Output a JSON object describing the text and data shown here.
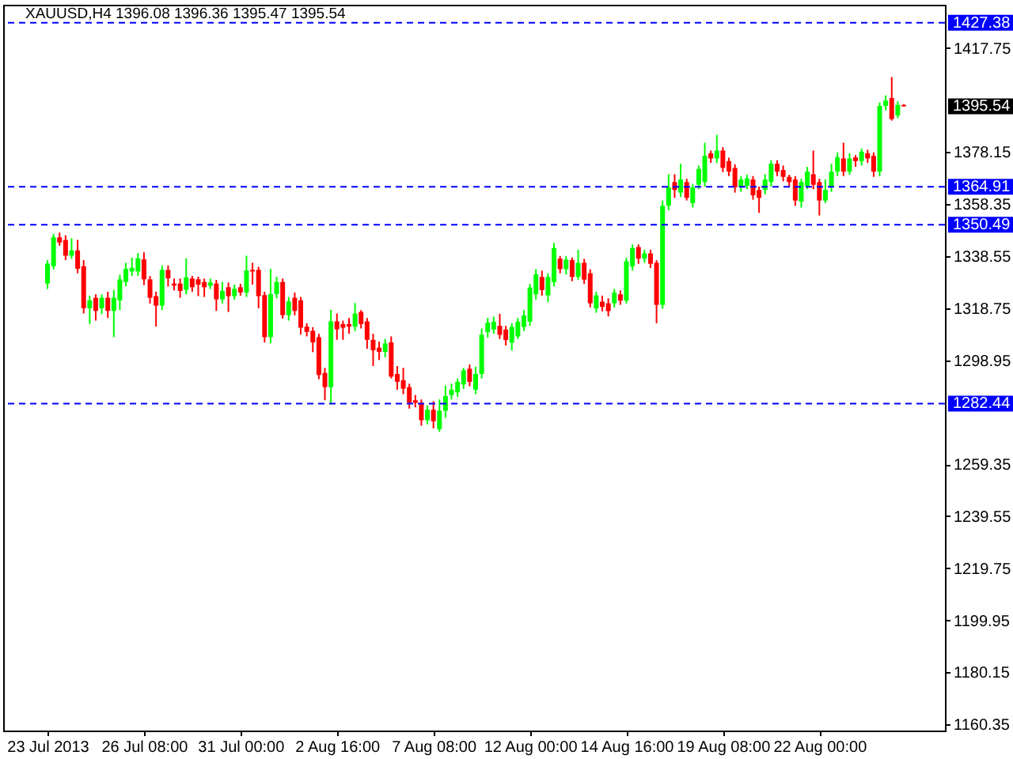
{
  "chart_data": {
    "type": "candlestick",
    "title": "XAUUSD,H4 1396.08 1396.36 1395.47 1395.54",
    "categories": [
      "23 Jul 2013",
      null,
      null,
      null,
      null,
      null,
      null,
      null,
      null,
      null,
      null,
      null,
      null,
      null,
      null,
      null,
      "26 Jul 08:00",
      null,
      null,
      null,
      null,
      null,
      null,
      null,
      null,
      null,
      null,
      null,
      null,
      null,
      null,
      null,
      "31 Jul 00:00",
      null,
      null,
      null,
      null,
      null,
      null,
      null,
      null,
      null,
      null,
      null,
      null,
      null,
      null,
      null,
      "2 Aug 16:00",
      null,
      null,
      null,
      null,
      null,
      null,
      null,
      null,
      null,
      null,
      null,
      null,
      null,
      null,
      null,
      "7 Aug 08:00",
      null,
      null,
      null,
      null,
      null,
      null,
      null,
      null,
      null,
      null,
      null,
      null,
      null,
      null,
      null,
      "12 Aug 00:00",
      null,
      null,
      null,
      null,
      null,
      null,
      null,
      null,
      null,
      null,
      null,
      null,
      null,
      null,
      null,
      "14 Aug 16:00",
      null,
      null,
      null,
      null,
      null,
      null,
      null,
      null,
      null,
      null,
      null,
      null,
      null,
      null,
      null,
      "19 Aug 08:00",
      null,
      null,
      null,
      null,
      null,
      null,
      null,
      null,
      null,
      null,
      null,
      null,
      null,
      null,
      null,
      "22 Aug 00:00",
      null,
      null,
      null,
      null,
      null,
      null,
      null,
      null,
      null,
      null,
      null,
      null,
      null,
      null
    ],
    "ohlc": [
      [
        1328.1,
        1337,
        1326,
        1335.7
      ],
      [
        1334.7,
        1347.1,
        1333.5,
        1345.7
      ],
      [
        1345.7,
        1347.5,
        1342.5,
        1343.7
      ],
      [
        1344.7,
        1346.5,
        1337,
        1338.7
      ],
      [
        1338.7,
        1345.3,
        1337.5,
        1340.7
      ],
      [
        1340.7,
        1344.7,
        1332,
        1333.7
      ],
      [
        1334.7,
        1337,
        1316.7,
        1318.7
      ],
      [
        1318.7,
        1323.5,
        1312.7,
        1321.7
      ],
      [
        1322.7,
        1324,
        1314,
        1317.7
      ],
      [
        1318.7,
        1324,
        1316.5,
        1322.7
      ],
      [
        1322.7,
        1325,
        1315,
        1317.7
      ],
      [
        1317.7,
        1325.7,
        1307.7,
        1322.7
      ],
      [
        1321.7,
        1331.5,
        1318,
        1329.7
      ],
      [
        1328.7,
        1336,
        1327,
        1333.7
      ],
      [
        1332.7,
        1338,
        1331,
        1334.1
      ],
      [
        1332.7,
        1339.7,
        1331,
        1337.7
      ],
      [
        1337.3,
        1340,
        1327.5,
        1329.7
      ],
      [
        1329.7,
        1331,
        1320.5,
        1322.7
      ],
      [
        1323.3,
        1325,
        1311.7,
        1319.7
      ],
      [
        1319.7,
        1335,
        1318,
        1333.3
      ],
      [
        1333.3,
        1335,
        1327,
        1330.1
      ],
      [
        1328.1,
        1330,
        1325.5,
        1327.3
      ],
      [
        1328.1,
        1330,
        1322.7,
        1325.3
      ],
      [
        1325.7,
        1337.7,
        1324,
        1330.5
      ],
      [
        1330,
        1331,
        1325,
        1326.7
      ],
      [
        1329.7,
        1330.7,
        1323.3,
        1327.7
      ],
      [
        1328.7,
        1330,
        1323,
        1326.7
      ],
      [
        1327.3,
        1330,
        1326,
        1328.5
      ],
      [
        1328.1,
        1329.5,
        1317.7,
        1322.1
      ],
      [
        1322.1,
        1328.7,
        1320.5,
        1325.3
      ],
      [
        1326.7,
        1328.5,
        1317.3,
        1323.3
      ],
      [
        1323.3,
        1327.7,
        1322,
        1326.1
      ],
      [
        1326.7,
        1328,
        1323.5,
        1324.7
      ],
      [
        1324.7,
        1338.7,
        1323,
        1333.1
      ],
      [
        1333.3,
        1336,
        1327.7,
        1332.7
      ],
      [
        1333.3,
        1334.5,
        1318.7,
        1323.3
      ],
      [
        1323.7,
        1325,
        1305.7,
        1307.7
      ],
      [
        1307.7,
        1333.7,
        1305.3,
        1324.1
      ],
      [
        1324.1,
        1330.7,
        1322.5,
        1328.7
      ],
      [
        1328.7,
        1330,
        1314.7,
        1316.1
      ],
      [
        1316.1,
        1323,
        1314,
        1321.3
      ],
      [
        1322.7,
        1324.7,
        1316,
        1317.7
      ],
      [
        1321.7,
        1323,
        1308.7,
        1311.3
      ],
      [
        1311.7,
        1313,
        1308,
        1309.7
      ],
      [
        1310.1,
        1311.5,
        1302,
        1305.7
      ],
      [
        1307.7,
        1309,
        1291.7,
        1293.3
      ],
      [
        1294.1,
        1296,
        1283.7,
        1288.7
      ],
      [
        1288.7,
        1318.1,
        1282.1,
        1313.7
      ],
      [
        1313.7,
        1316.7,
        1306.7,
        1310.7
      ],
      [
        1312.7,
        1314,
        1306.7,
        1311.3
      ],
      [
        1312.7,
        1315,
        1309,
        1311.7
      ],
      [
        1311.7,
        1320.7,
        1310,
        1316.7
      ],
      [
        1317.3,
        1318,
        1311,
        1312.7
      ],
      [
        1313.7,
        1315,
        1303.3,
        1306.7
      ],
      [
        1306.7,
        1309,
        1296.7,
        1302.7
      ],
      [
        1303.7,
        1306,
        1299,
        1302.1
      ],
      [
        1302.1,
        1307,
        1300,
        1305.3
      ],
      [
        1305.7,
        1308,
        1292,
        1292.7
      ],
      [
        1293.7,
        1296.7,
        1287.7,
        1290.7
      ],
      [
        1291.3,
        1296,
        1286,
        1288.1
      ],
      [
        1288.7,
        1290,
        1280.5,
        1282.7
      ],
      [
        1283.7,
        1285.7,
        1281,
        1282.7
      ],
      [
        1282.7,
        1284,
        1274,
        1276.1
      ],
      [
        1276.1,
        1281.7,
        1274.5,
        1280.1
      ],
      [
        1280.1,
        1283.3,
        1273,
        1275.7
      ],
      [
        1272.7,
        1284,
        1271.7,
        1279.7
      ],
      [
        1279.7,
        1289.3,
        1277,
        1285.3
      ],
      [
        1285.7,
        1290,
        1284,
        1287.7
      ],
      [
        1286.7,
        1292,
        1285,
        1290.7
      ],
      [
        1289.7,
        1296,
        1288,
        1295.1
      ],
      [
        1295.7,
        1297.3,
        1289,
        1290.7
      ],
      [
        1287.7,
        1296.5,
        1286,
        1293.7
      ],
      [
        1293.7,
        1311,
        1292,
        1308.6
      ],
      [
        1309.6,
        1315,
        1307.5,
        1313.2
      ],
      [
        1310.6,
        1315.5,
        1309,
        1313.6
      ],
      [
        1312,
        1316.6,
        1307,
        1308.6
      ],
      [
        1310.6,
        1312,
        1304.5,
        1306.6
      ],
      [
        1305.6,
        1313,
        1302.6,
        1311.6
      ],
      [
        1308,
        1315,
        1307,
        1313.6
      ],
      [
        1311.6,
        1318,
        1310,
        1316
      ],
      [
        1313.6,
        1328,
        1312,
        1326.6
      ],
      [
        1324,
        1333.6,
        1322,
        1331.6
      ],
      [
        1330.6,
        1333,
        1323.5,
        1325.6
      ],
      [
        1323.6,
        1332,
        1321,
        1330.6
      ],
      [
        1328.6,
        1343.6,
        1327,
        1341.6
      ],
      [
        1337.6,
        1338.6,
        1332,
        1333.6
      ],
      [
        1333.6,
        1338.6,
        1331.5,
        1337.2
      ],
      [
        1337,
        1338,
        1329,
        1330.6
      ],
      [
        1330.6,
        1341,
        1329.5,
        1336
      ],
      [
        1336,
        1337.5,
        1328,
        1329.6
      ],
      [
        1332,
        1333.5,
        1319,
        1320.6
      ],
      [
        1318.6,
        1325,
        1317,
        1323.6
      ],
      [
        1321.2,
        1323.5,
        1317.5,
        1319.2
      ],
      [
        1320.6,
        1322.5,
        1315.6,
        1317.6
      ],
      [
        1320.6,
        1326,
        1319,
        1324.6
      ],
      [
        1324,
        1325.5,
        1320,
        1321.6
      ],
      [
        1321.6,
        1338,
        1320.5,
        1336.6
      ],
      [
        1334.6,
        1343,
        1333,
        1341.6
      ],
      [
        1342,
        1343,
        1335.6,
        1337.6
      ],
      [
        1337.6,
        1341,
        1336,
        1339.6
      ],
      [
        1339.6,
        1341,
        1334,
        1335.6
      ],
      [
        1336,
        1337,
        1313,
        1320
      ],
      [
        1320,
        1359.7,
        1318.5,
        1357.7
      ],
      [
        1357.7,
        1369.7,
        1356,
        1364.7
      ],
      [
        1366.7,
        1369.7,
        1360.7,
        1363.7
      ],
      [
        1362.7,
        1373.7,
        1361,
        1367.7
      ],
      [
        1366.7,
        1368,
        1359.7,
        1360.7
      ],
      [
        1358.7,
        1366,
        1357,
        1364.7
      ],
      [
        1365.7,
        1373,
        1364,
        1371.7
      ],
      [
        1366.7,
        1381.7,
        1365,
        1376.7
      ],
      [
        1377.7,
        1378.7,
        1374,
        1375.7
      ],
      [
        1375.7,
        1384.7,
        1374,
        1378.7
      ],
      [
        1378.7,
        1380,
        1370.5,
        1372.1
      ],
      [
        1374.7,
        1376,
        1369,
        1370.7
      ],
      [
        1372.1,
        1373.5,
        1362.7,
        1364.7
      ],
      [
        1364.7,
        1369,
        1363,
        1367.7
      ],
      [
        1365.3,
        1369.5,
        1364,
        1368.1
      ],
      [
        1367.7,
        1369,
        1360,
        1361.7
      ],
      [
        1363.7,
        1365,
        1355,
        1360.7
      ],
      [
        1363.7,
        1369.7,
        1362,
        1367.7
      ],
      [
        1366.7,
        1375,
        1365,
        1373.7
      ],
      [
        1373.7,
        1375,
        1369,
        1370.7
      ],
      [
        1371.3,
        1373,
        1367,
        1368.7
      ],
      [
        1368.7,
        1369.5,
        1365,
        1366.7
      ],
      [
        1367.7,
        1369,
        1357.7,
        1359.7
      ],
      [
        1359.3,
        1368,
        1357,
        1366.7
      ],
      [
        1365.3,
        1372.5,
        1364,
        1370.7
      ],
      [
        1369.7,
        1378.7,
        1364,
        1365.7
      ],
      [
        1366.7,
        1368,
        1354,
        1359.7
      ],
      [
        1359.7,
        1367.7,
        1358.7,
        1363.7
      ],
      [
        1364.7,
        1373.7,
        1363,
        1370.7
      ],
      [
        1370.7,
        1378,
        1369,
        1376.1
      ],
      [
        1375.7,
        1381.7,
        1369,
        1370.7
      ],
      [
        1370.7,
        1377.7,
        1369.5,
        1375.7
      ],
      [
        1376.1,
        1377,
        1372.5,
        1374.7
      ],
      [
        1374.7,
        1379.5,
        1373,
        1378.3
      ],
      [
        1377.7,
        1379,
        1374,
        1375.7
      ],
      [
        1376.7,
        1378,
        1368.7,
        1370.7
      ],
      [
        1370.7,
        1397,
        1369,
        1395.7
      ],
      [
        1395.7,
        1399.7,
        1394,
        1397.7
      ],
      [
        1398.7,
        1406.7,
        1390.1,
        1390.7
      ],
      [
        1392.1,
        1397.5,
        1391,
        1396.1
      ],
      [
        1396.08,
        1396.36,
        1395.47,
        1395.54
      ]
    ],
    "colors": [
      "#00ff00",
      "#00ff00",
      "#ff0000",
      "#ff0000",
      "#00ff00",
      "#ff0000",
      "#ff0000",
      "#00ff00",
      "#ff0000",
      "#00ff00",
      "#ff0000",
      "#00ff00",
      "#00ff00",
      "#00ff00",
      "#00ff00",
      "#00ff00",
      "#ff0000",
      "#ff0000",
      "#ff0000",
      "#00ff00",
      "#ff0000",
      "#ff0000",
      "#ff0000",
      "#00ff00",
      "#ff0000",
      "#ff0000",
      "#ff0000",
      "#00ff00",
      "#ff0000",
      "#00ff00",
      "#ff0000",
      "#00ff00",
      "#ff0000",
      "#00ff00",
      "#ff0000",
      "#ff0000",
      "#ff0000",
      "#00ff00",
      "#00ff00",
      "#ff0000",
      "#00ff00",
      "#ff0000",
      "#ff0000",
      "#ff0000",
      "#ff0000",
      "#ff0000",
      "#ff0000",
      "#00ff00",
      "#ff0000",
      "#ff0000",
      "#ff0000",
      "#00ff00",
      "#ff0000",
      "#ff0000",
      "#ff0000",
      "#ff0000",
      "#00ff00",
      "#ff0000",
      "#ff0000",
      "#ff0000",
      "#ff0000",
      "#ff0000",
      "#ff0000",
      "#00ff00",
      "#ff0000",
      "#00ff00",
      "#00ff00",
      "#00ff00",
      "#00ff00",
      "#00ff00",
      "#ff0000",
      "#00ff00",
      "#00ff00",
      "#00ff00",
      "#00ff00",
      "#ff0000",
      "#ff0000",
      "#00ff00",
      "#00ff00",
      "#00ff00",
      "#00ff00",
      "#00ff00",
      "#ff0000",
      "#00ff00",
      "#00ff00",
      "#ff0000",
      "#00ff00",
      "#ff0000",
      "#00ff00",
      "#ff0000",
      "#ff0000",
      "#00ff00",
      "#ff0000",
      "#ff0000",
      "#00ff00",
      "#ff0000",
      "#00ff00",
      "#00ff00",
      "#ff0000",
      "#00ff00",
      "#ff0000",
      "#ff0000",
      "#00ff00",
      "#00ff00",
      "#ff0000",
      "#00ff00",
      "#ff0000",
      "#00ff00",
      "#00ff00",
      "#00ff00",
      "#ff0000",
      "#00ff00",
      "#ff0000",
      "#ff0000",
      "#ff0000",
      "#00ff00",
      "#00ff00",
      "#ff0000",
      "#ff0000",
      "#00ff00",
      "#00ff00",
      "#ff0000",
      "#ff0000",
      "#ff0000",
      "#ff0000",
      "#00ff00",
      "#00ff00",
      "#ff0000",
      "#ff0000",
      "#00ff00",
      "#00ff00",
      "#00ff00",
      "#ff0000",
      "#00ff00",
      "#ff0000",
      "#00ff00",
      "#ff0000",
      "#ff0000",
      "#00ff00",
      "#00ff00",
      "#ff0000",
      "#00ff00",
      "#ff0000"
    ],
    "ylim": [
      1158,
      1434.2
    ],
    "yticks": [
      1417.75,
      1378.15,
      1358.35,
      1338.55,
      1318.75,
      1298.95,
      1259.35,
      1239.55,
      1219.75,
      1199.95,
      1180.15,
      1160.35
    ],
    "ref_lines": [
      {
        "axis": "y",
        "value": 1427.38,
        "label": "1427.38",
        "color": "#0000ff",
        "line_style": "dashed"
      },
      {
        "axis": "y",
        "value": 1364.91,
        "label": "1364.91",
        "color": "#0000ff",
        "line_style": "dashed"
      },
      {
        "axis": "y",
        "value": 1350.49,
        "label": "1350.49",
        "color": "#0000ff",
        "line_style": "dashed"
      },
      {
        "axis": "y",
        "value": 1282.44,
        "label": "1282.44",
        "color": "#0000ff",
        "line_style": "dashed"
      }
    ],
    "annotations": [
      "1395.54"
    ]
  }
}
